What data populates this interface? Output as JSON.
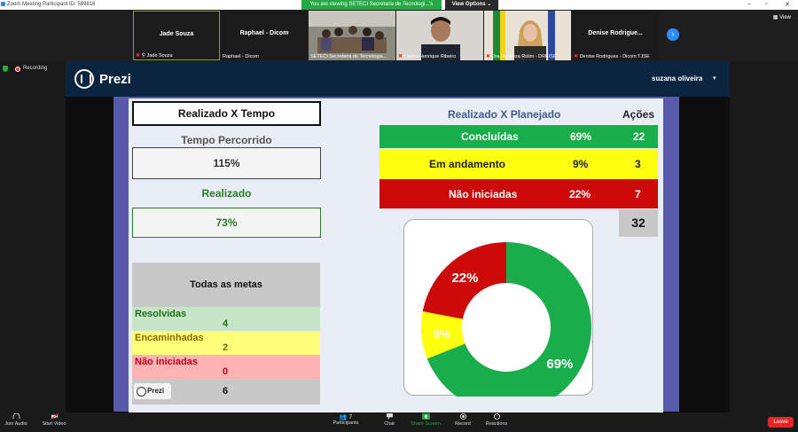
{
  "window": {
    "title": "Zoom Meeting Participant ID: 589616",
    "banner": "You are viewing SETECI Secretaria de Tecnologi...'s screen",
    "view_options": "View Options",
    "view_button": "View",
    "recording": "Recording"
  },
  "gallery": [
    {
      "name": "Jade Souza",
      "label": "Jade Souza",
      "muted": true,
      "video": false
    },
    {
      "name": "Raphael - Dicom",
      "label": "Raphael - Dicom",
      "muted": false,
      "video": false
    },
    {
      "name": "",
      "label": "SETECI Secretaria de Tecnologia...",
      "muted": false,
      "video": true
    },
    {
      "name": "",
      "label": "Carlos Henrique Ribeiro",
      "muted": true,
      "video": true
    },
    {
      "name": "",
      "label": "Dra. Andreza Rolim - DRE/SE",
      "muted": true,
      "video": true
    },
    {
      "name": "Denise  Rodrigue...",
      "label": "Denise Rodrigues - Dicom TJSE",
      "muted": true,
      "video": false
    }
  ],
  "prezi": {
    "app_name": "Prezi",
    "user": "suzana oliveira",
    "badge": "Prezi"
  },
  "slide": {
    "title": "Realizado X Tempo",
    "tempo_label": "Tempo Percorrido",
    "tempo_value": "115%",
    "realizado_label": "Realizado",
    "realizado_value": "73%",
    "metas": {
      "header": "Todas as metas",
      "rows": [
        {
          "label": "Resolvidas",
          "value": "4"
        },
        {
          "label": "Encaminhadas",
          "value": "2"
        },
        {
          "label": "Não iniciadas",
          "value": "0"
        }
      ],
      "total": "6"
    },
    "planejado_title": "Realizado X Planejado",
    "acoes_title": "Ações",
    "planejado_rows": [
      {
        "label": "Concluídas",
        "percent": "69%",
        "count": "22"
      },
      {
        "label": "Em andamento",
        "percent": "9%",
        "count": "3"
      },
      {
        "label": "Não iniciadas",
        "percent": "22%",
        "count": "7"
      }
    ],
    "total_acoes": "32"
  },
  "chart_data": {
    "type": "pie",
    "categories": [
      "Concluídas",
      "Em andamento",
      "Não iniciadas"
    ],
    "values": [
      69,
      9,
      22
    ],
    "labels": [
      "69%",
      "9%",
      "22%"
    ],
    "colors": [
      "#1aad4b",
      "#ffff10",
      "#cc0a0a"
    ]
  },
  "toolbar": {
    "join_audio": "Join Audio",
    "start_video": "Start Video",
    "participants": "Participants",
    "participants_count": "7",
    "chat": "Chat",
    "share_screen": "Share Screen",
    "record": "Record",
    "reactions": "Reactions",
    "leave": "Leave"
  }
}
